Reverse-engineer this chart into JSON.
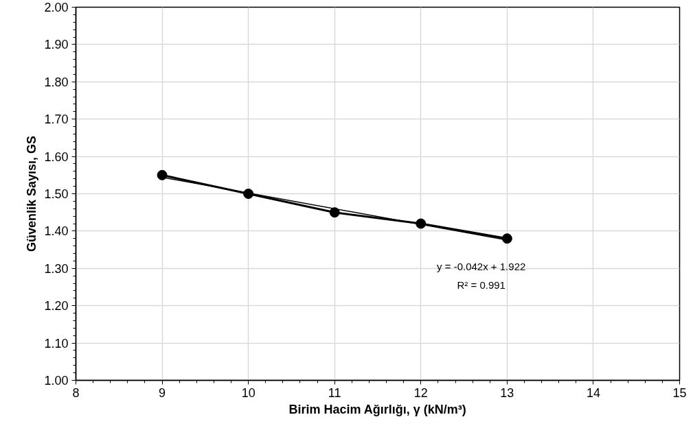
{
  "chart_data": {
    "type": "line",
    "xlabel": "Birim Hacim Ağırlığı, γ (kN/m³)",
    "ylabel": "Güvenlik Sayısı, GS",
    "x": [
      9,
      10,
      11,
      12,
      13
    ],
    "series": [
      {
        "color": "#000000",
        "values": [
          1.55,
          1.5,
          1.45,
          1.42,
          1.38
        ],
        "marker": "circle"
      },
      {
        "type": "line",
        "color": "#000000",
        "x": [
          9,
          13
        ],
        "values": [
          1.544,
          1.376
        ],
        "marker": "none"
      }
    ],
    "xlim": [
      8,
      15
    ],
    "xticks": [
      8,
      9,
      10,
      11,
      12,
      13,
      14,
      15
    ],
    "ylim": [
      1.0,
      2.0
    ],
    "yticks": [
      {
        "value": 1.0,
        "label": "1.00"
      },
      {
        "value": 1.1,
        "label": "1.10"
      },
      {
        "value": 1.2,
        "label": "1.20"
      },
      {
        "value": 1.3,
        "label": "1.30"
      },
      {
        "value": 1.4,
        "label": "1.40"
      },
      {
        "value": 1.5,
        "label": "1.50"
      },
      {
        "value": 1.6,
        "label": "1.60"
      },
      {
        "value": 1.7,
        "label": "1.70"
      },
      {
        "value": 1.8,
        "label": "1.80"
      },
      {
        "value": 1.9,
        "label": "1.90"
      },
      {
        "value": 2.0,
        "label": "2.00"
      }
    ],
    "grid": true,
    "annotations": [
      "y = -0.042x + 1.922",
      "R² = 0.991"
    ]
  }
}
